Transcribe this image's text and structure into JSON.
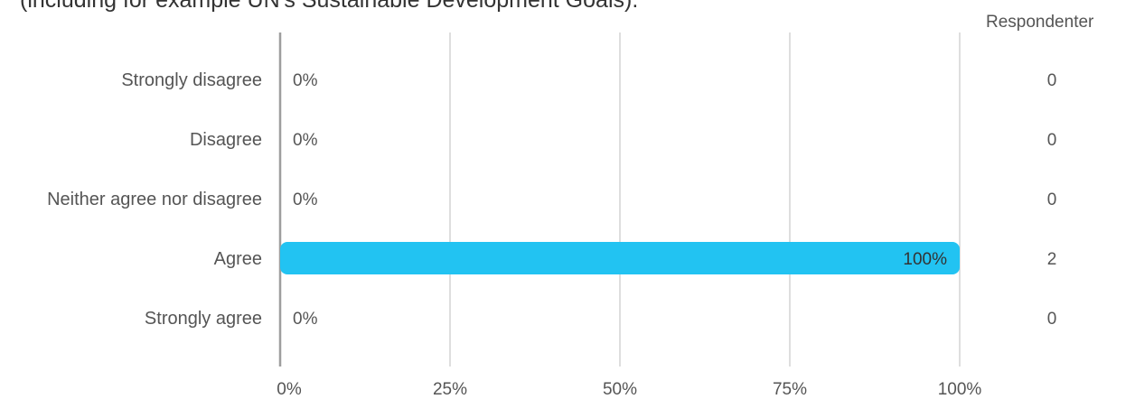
{
  "title": "(including for example UN's Sustainable Development Goals).",
  "responses_header": "Respondenter",
  "chart_data": {
    "type": "bar",
    "orientation": "horizontal",
    "categories": [
      "Strongly disagree",
      "Disagree",
      "Neither agree nor disagree",
      "Agree",
      "Strongly agree"
    ],
    "values": [
      0,
      0,
      0,
      100,
      0
    ],
    "value_labels": [
      "0%",
      "0%",
      "0%",
      "100%",
      "0%"
    ],
    "respondents": [
      0,
      0,
      0,
      2,
      0
    ],
    "xlim": [
      0,
      100
    ],
    "xticks": [
      0,
      25,
      50,
      75,
      100
    ],
    "xtick_labels": [
      "0%",
      "25%",
      "50%",
      "75%",
      "100%"
    ],
    "grid": true,
    "bar_color": "#22c3f2"
  }
}
